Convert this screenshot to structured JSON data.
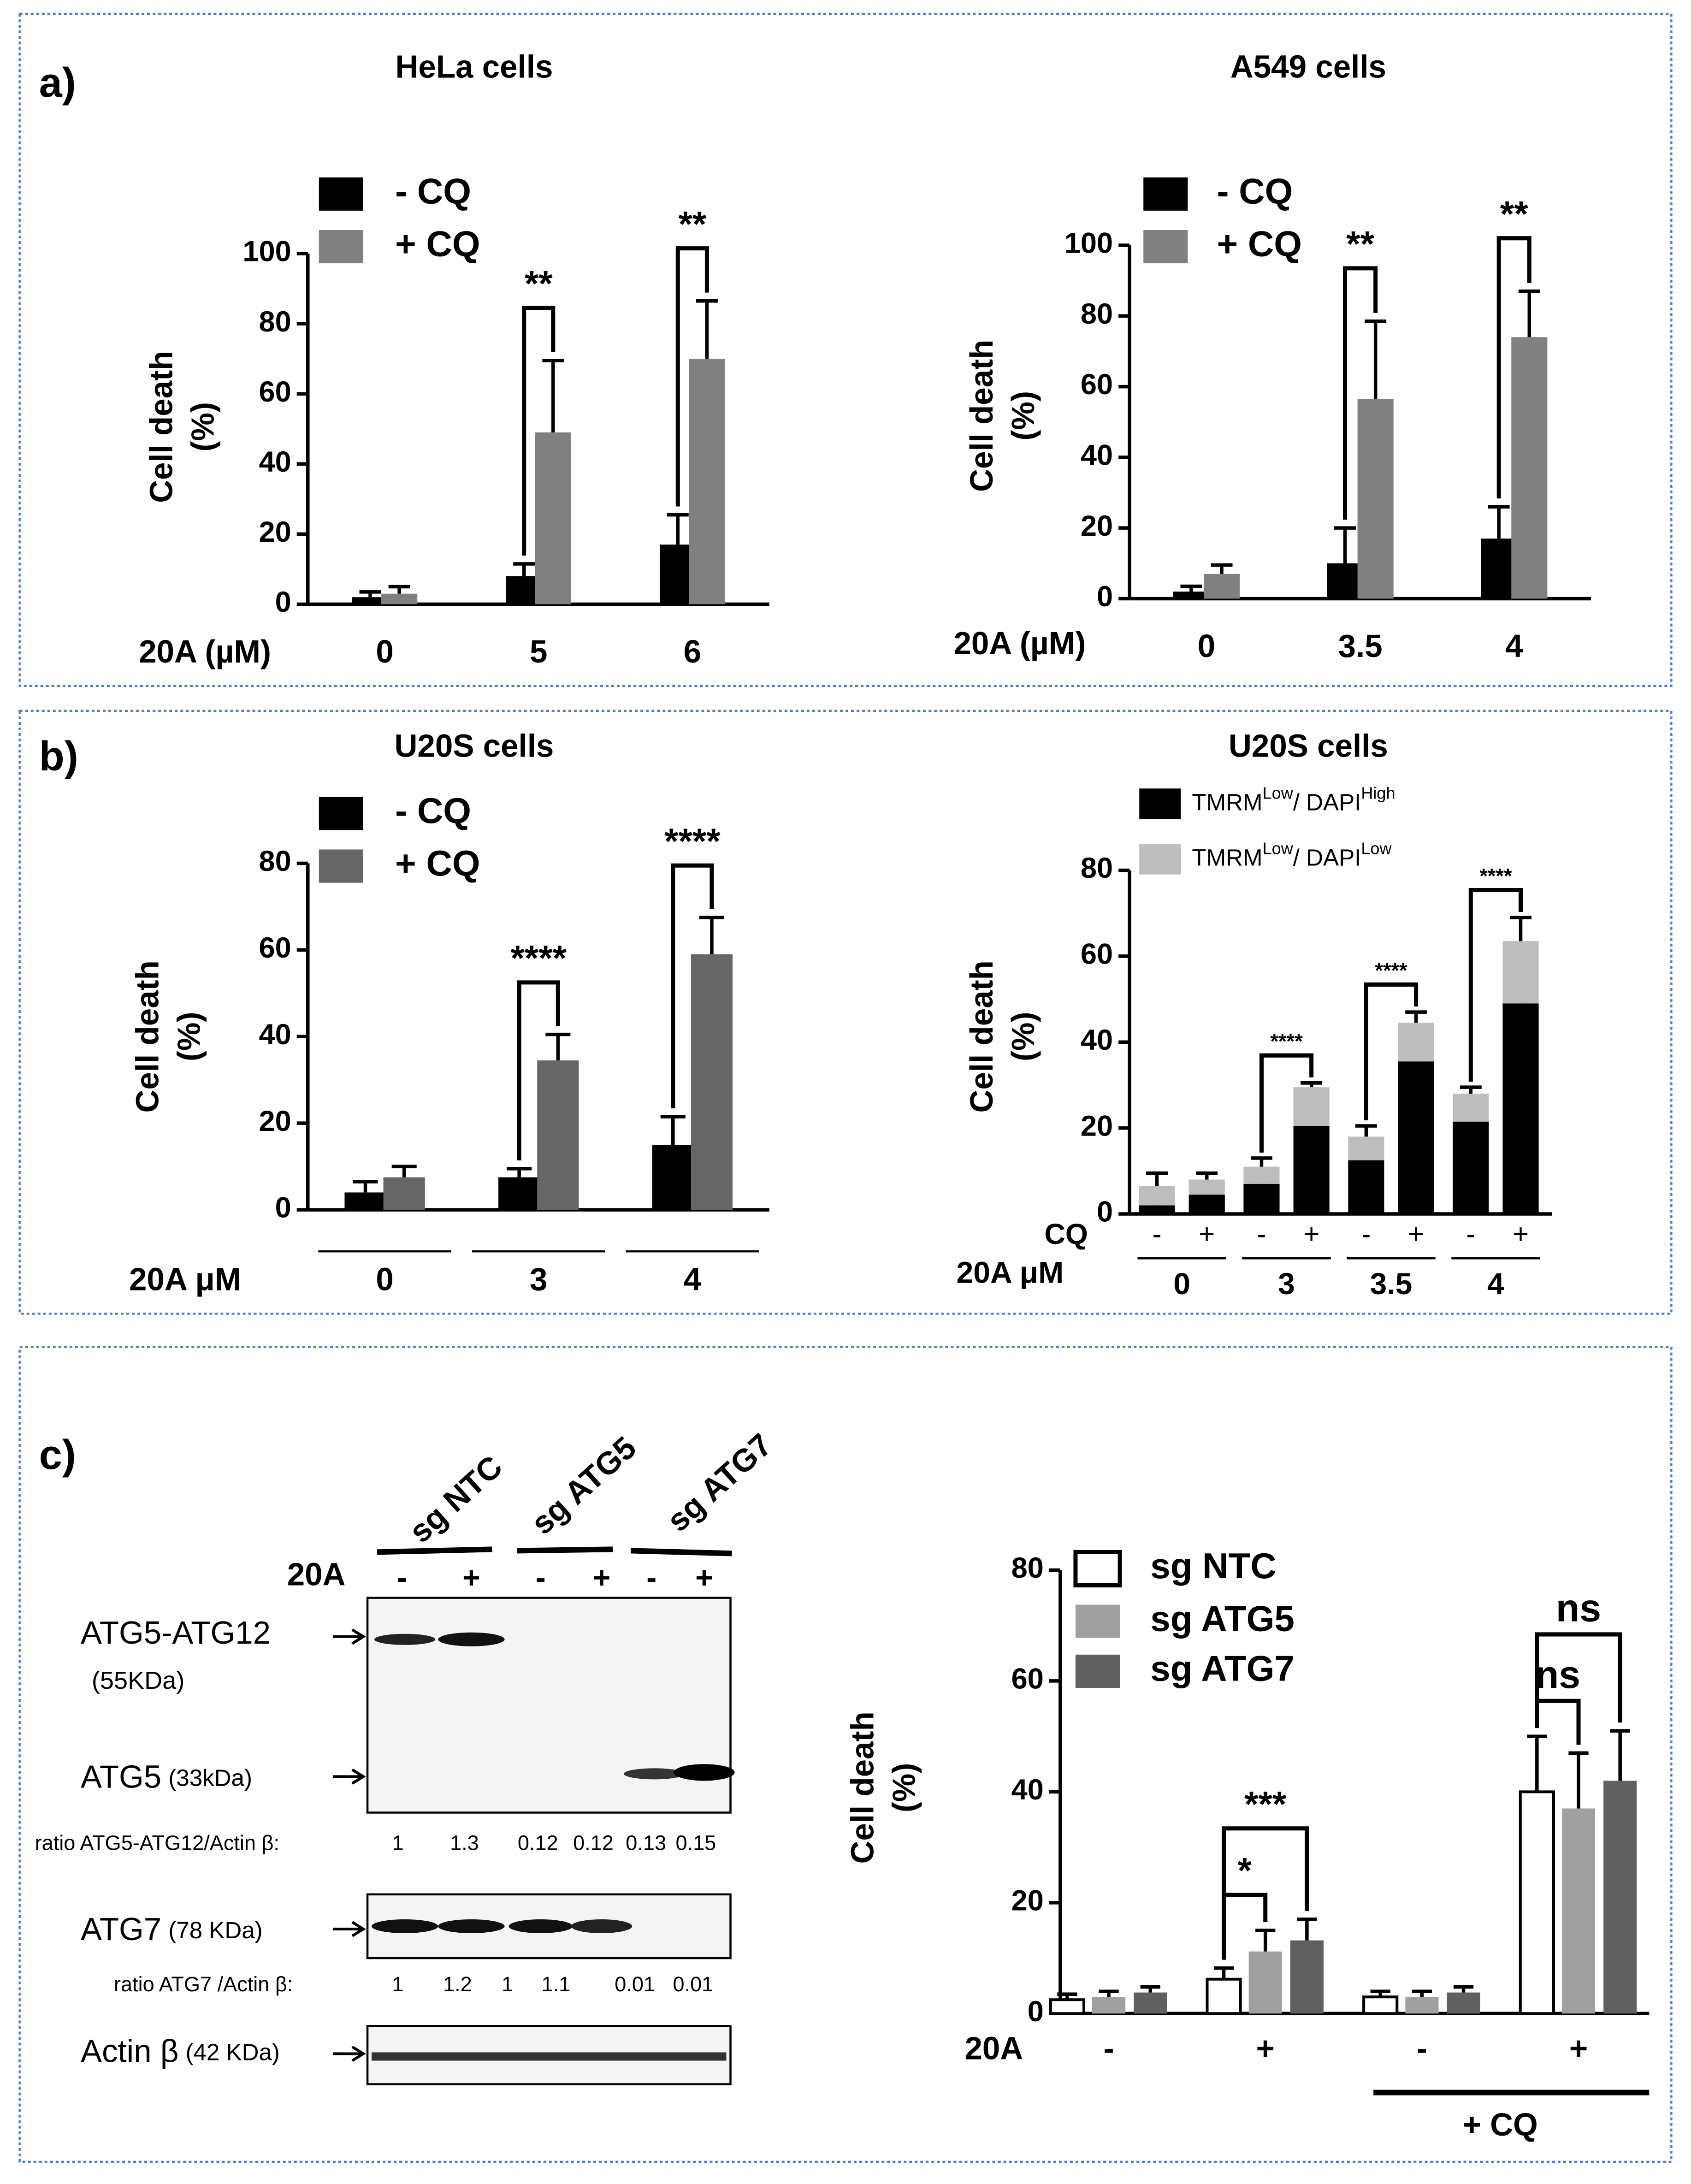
{
  "panels": [
    "a)",
    "b)",
    "c)"
  ],
  "chart_data": [
    {
      "type": "bar",
      "title": "HeLa  cells",
      "ylabel": [
        "Cell death",
        "(%)"
      ],
      "xlabel": "20A (µM)",
      "categories": [
        "0",
        "5",
        "6"
      ],
      "series": [
        {
          "name": "- CQ",
          "color": "#000000",
          "values": [
            2,
            8,
            17
          ],
          "errors": [
            1.5,
            3.5,
            8.5
          ]
        },
        {
          "name": "+ CQ",
          "color": "#808080",
          "values": [
            3,
            49,
            70
          ],
          "errors": [
            2,
            20.5,
            16.5
          ]
        }
      ],
      "ylim": [
        0,
        100
      ],
      "yticks": [
        0,
        20,
        40,
        60,
        80,
        100
      ],
      "brackets": [
        {
          "category": 1,
          "series": [
            0,
            1
          ],
          "label": "**"
        },
        {
          "category": 2,
          "series": [
            0,
            1
          ],
          "label": "**"
        }
      ]
    },
    {
      "type": "bar",
      "title": "A549 cells",
      "ylabel": [
        "Cell death",
        "(%)"
      ],
      "xlabel": "20A (µM)",
      "categories": [
        "0",
        "3.5",
        "4"
      ],
      "series": [
        {
          "name": "- CQ",
          "color": "#000000",
          "values": [
            2,
            10,
            17
          ],
          "errors": [
            1.5,
            10,
            9
          ]
        },
        {
          "name": "+ CQ",
          "color": "#808080",
          "values": [
            7,
            56.5,
            74
          ],
          "errors": [
            2.5,
            22,
            13
          ]
        }
      ],
      "ylim": [
        0,
        100
      ],
      "yticks": [
        0,
        20,
        40,
        60,
        80,
        100
      ],
      "brackets": [
        {
          "category": 1,
          "series": [
            0,
            1
          ],
          "label": "**"
        },
        {
          "category": 2,
          "series": [
            0,
            1
          ],
          "label": "**"
        }
      ]
    },
    {
      "type": "bar",
      "title": "U20S cells",
      "ylabel": [
        "Cell death",
        "(%)"
      ],
      "xlabel": "20A μM",
      "categories": [
        "0",
        "3",
        "4"
      ],
      "series": [
        {
          "name": "- CQ",
          "color": "#000000",
          "values": [
            4,
            7.5,
            15
          ],
          "errors": [
            2.5,
            2,
            6.5
          ]
        },
        {
          "name": "+ CQ",
          "color": "#666666",
          "values": [
            7.5,
            34.5,
            59
          ],
          "errors": [
            2.5,
            6,
            8.5
          ]
        }
      ],
      "ylim": [
        0,
        80
      ],
      "yticks": [
        0,
        20,
        40,
        60,
        80
      ],
      "brackets": [
        {
          "category": 1,
          "series": [
            0,
            1
          ],
          "label": "****"
        },
        {
          "category": 2,
          "series": [
            0,
            1
          ],
          "label": "****"
        }
      ]
    },
    {
      "type": "stacked_bar",
      "title": "U20S cells",
      "ylabel": [
        "Cell death",
        "(%)"
      ],
      "category_label": "CQ",
      "categories": [
        "-",
        "+",
        "-",
        "+",
        "-",
        "+",
        "-",
        "+"
      ],
      "group_label": "20A μM",
      "groups": [
        "0",
        "3",
        "3.5",
        "4"
      ],
      "series": [
        {
          "name": [
            "TMRM",
            "Low",
            "/ DAPI",
            "High"
          ],
          "color": "#000000",
          "values": [
            2,
            4.5,
            7,
            20.5,
            12.5,
            35.5,
            21.5,
            49
          ],
          "errors": [
            1,
            1.5,
            2,
            6,
            3,
            6,
            2.5,
            8
          ]
        },
        {
          "name": [
            "TMRM",
            "Low",
            "/ DAPI",
            "Low"
          ],
          "color": "#bdbdbd",
          "values": [
            4.5,
            3.5,
            4,
            9,
            5.5,
            9,
            6.5,
            14.5
          ],
          "errors": [
            3,
            1.5,
            2,
            1,
            2.5,
            2.5,
            1.5,
            5.5
          ]
        }
      ],
      "ylim": [
        0,
        80
      ],
      "yticks": [
        0,
        20,
        40,
        60,
        80
      ],
      "brackets": [
        {
          "categories": [
            2,
            3
          ],
          "label": "****"
        },
        {
          "categories": [
            4,
            5
          ],
          "label": "****"
        },
        {
          "categories": [
            6,
            7
          ],
          "label": "****"
        }
      ]
    },
    {
      "type": "bar",
      "ylabel": [
        "Cell death",
        "(%)"
      ],
      "xlabel": "20A",
      "categories": [
        "-",
        "+",
        "-",
        "+"
      ],
      "group": "+ CQ",
      "series": [
        {
          "name": "sg NTC",
          "color": "#ffffff",
          "edgecolor": "#000000",
          "values": [
            2.5,
            6.2,
            3,
            40
          ],
          "errors": [
            1,
            2,
            1,
            10
          ]
        },
        {
          "name": "sg ATG5",
          "color": "#a0a0a0",
          "values": [
            3,
            11.2,
            3,
            37
          ],
          "errors": [
            1,
            3.8,
            1,
            10
          ]
        },
        {
          "name": "sg ATG7",
          "color": "#606060",
          "values": [
            3.8,
            13.2,
            3.8,
            42
          ],
          "errors": [
            1,
            3.8,
            1,
            9
          ]
        }
      ],
      "ylim": [
        0,
        80
      ],
      "yticks": [
        0,
        20,
        40,
        60,
        80
      ],
      "brackets": [
        {
          "category": 1,
          "series": [
            0,
            1
          ],
          "label": "*"
        },
        {
          "category": 1,
          "series": [
            0,
            2
          ],
          "label": "***"
        },
        {
          "category": 3,
          "series": [
            0,
            1
          ],
          "label": "ns"
        },
        {
          "category": 3,
          "series": [
            0,
            2
          ],
          "label": "ns"
        }
      ]
    }
  ],
  "blot": {
    "lanes": [
      "sg NTC",
      "sg ATG5",
      "sg ATG7"
    ],
    "treatment": "20A",
    "signs": [
      "-",
      "+",
      "-",
      "+",
      "-",
      "+"
    ],
    "bands": [
      {
        "label": "ATG5-ATG12",
        "size": "(55KDa)"
      },
      {
        "label": "ATG5",
        "size": "(33kDa)"
      },
      {
        "label": "ATG7",
        "size": "(78 KDa)"
      },
      {
        "label": "Actin β",
        "size": "(42 KDa)"
      }
    ],
    "ratios": [
      {
        "label": "ratio ATG5-ATG12/Actin β:",
        "values": [
          1,
          1.3,
          0.12,
          0.12,
          0.13,
          0.15
        ]
      },
      {
        "label": "ratio ATG7 /Actin β:",
        "values": [
          1,
          1.2,
          1,
          1.1,
          0.01,
          0.01
        ]
      }
    ]
  }
}
